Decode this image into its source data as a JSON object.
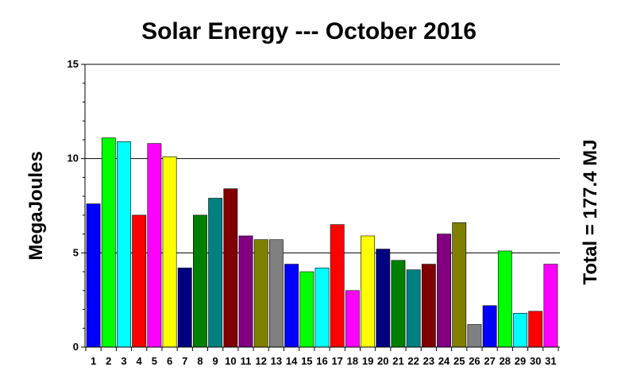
{
  "chart_data": {
    "type": "bar",
    "title": "Solar Energy --- October 2016",
    "ylabel": "MegaJoules",
    "right_label": "Total = 177.4 MJ",
    "ylim": [
      0,
      15
    ],
    "yticks": [
      0,
      5,
      10,
      15
    ],
    "grid": true,
    "categories": [
      "1",
      "2",
      "3",
      "4",
      "5",
      "6",
      "7",
      "8",
      "9",
      "10",
      "11",
      "12",
      "13",
      "14",
      "15",
      "16",
      "17",
      "18",
      "19",
      "20",
      "21",
      "22",
      "23",
      "24",
      "25",
      "26",
      "27",
      "28",
      "29",
      "30",
      "31"
    ],
    "values": [
      7.6,
      11.1,
      10.9,
      7.0,
      10.8,
      10.1,
      4.2,
      7.0,
      7.9,
      8.4,
      5.9,
      5.7,
      5.7,
      4.4,
      4.0,
      4.2,
      6.5,
      3.0,
      5.9,
      5.2,
      4.6,
      4.1,
      4.4,
      6.0,
      6.6,
      1.2,
      2.2,
      5.1,
      1.8,
      1.9,
      4.4
    ],
    "colors": [
      "#0000ff",
      "#00ff00",
      "#00ffff",
      "#ff0000",
      "#ff00ff",
      "#ffff00",
      "#000080",
      "#008000",
      "#008080",
      "#800000",
      "#800080",
      "#808000",
      "#808080",
      "#0000ff",
      "#00ff00",
      "#00ffff",
      "#ff0000",
      "#ff00ff",
      "#ffff00",
      "#000080",
      "#008000",
      "#008080",
      "#800000",
      "#800080",
      "#808000",
      "#808080",
      "#0000ff",
      "#00ff00",
      "#00ffff",
      "#ff0000",
      "#ff00ff"
    ]
  }
}
